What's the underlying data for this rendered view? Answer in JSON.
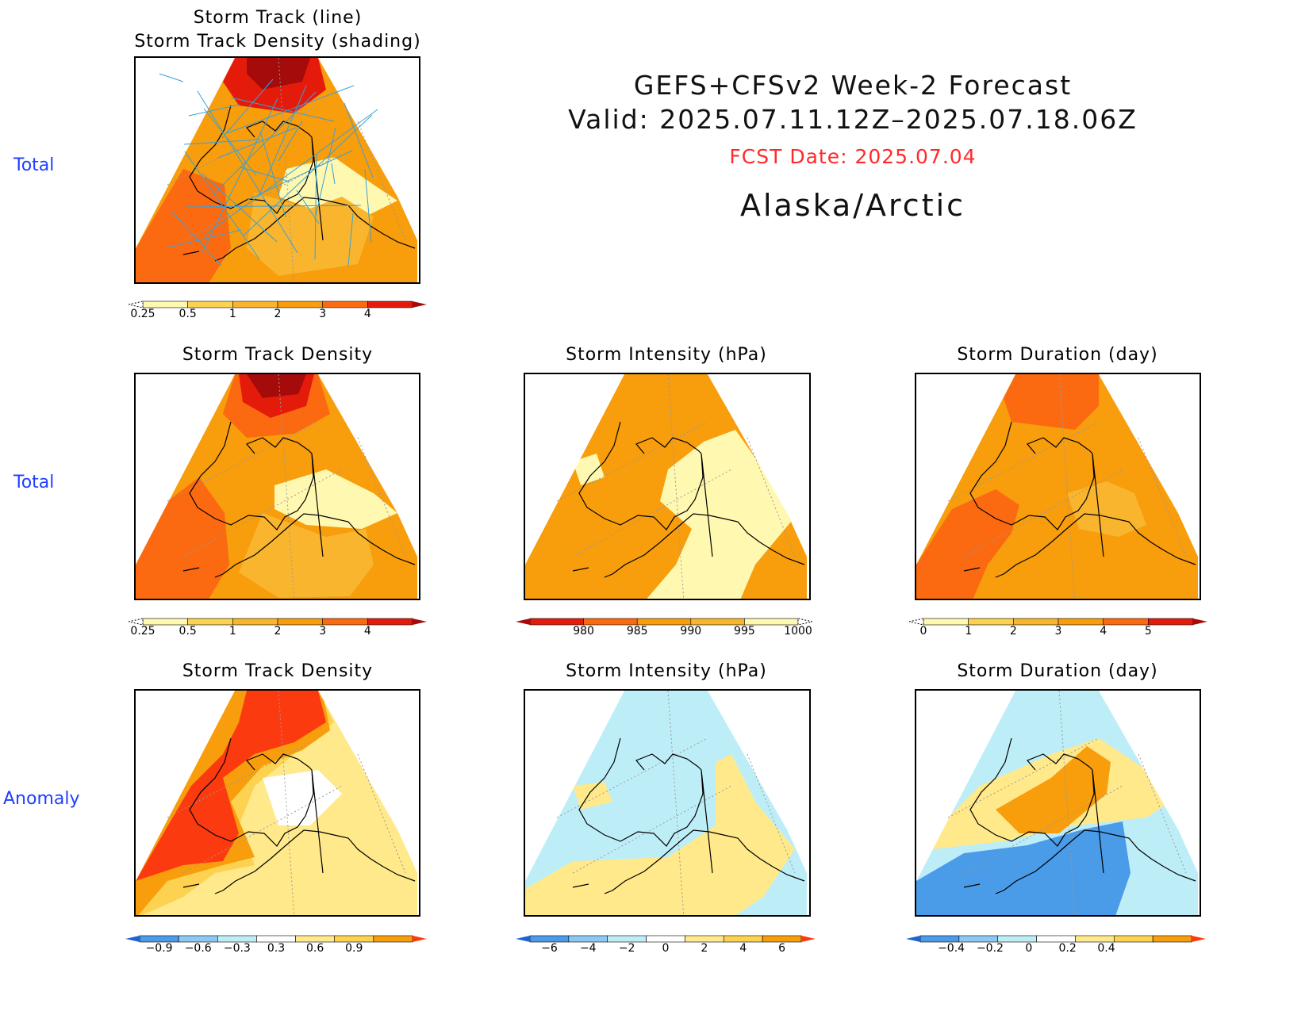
{
  "header": {
    "title_line1": "GEFS+CFSv2 Week-2 Forecast",
    "title_line2": "Valid: 2025.07.11.12Z–2025.07.18.06Z",
    "fcst_date": "FCST Date: 2025.07.04",
    "region": "Alaska/Arctic"
  },
  "rows": {
    "row1": "Total",
    "row2": "Total",
    "row3": "Anomaly"
  },
  "panels": {
    "p1_title_a": "Storm Track (line)",
    "p1_title_b": "Storm Track Density (shading)",
    "p2_title": "Storm Track Density",
    "p3_title": "Storm Intensity (hPa)",
    "p4_title": "Storm Duration (day)",
    "p5_title": "Storm Track Density",
    "p6_title": "Storm Intensity (hPa)",
    "p7_title": "Storm Duration (day)"
  },
  "colors": {
    "dens": [
      "#fff8b0",
      "#fcd250",
      "#f9b52e",
      "#f89d0c",
      "#fb6a10",
      "#e41b0b",
      "#a60b0b"
    ],
    "inten": [
      "#a60b0b",
      "#e41b0b",
      "#fb6a10",
      "#f89d0c",
      "#f9b52e",
      "#fff8b0"
    ],
    "anom": [
      "#1f62d2",
      "#4a9be8",
      "#8cc8f2",
      "#bdeef8",
      "#ffffff",
      "#ffe98a",
      "#fcd250",
      "#f89d0c",
      "#fb3a10"
    ],
    "map_line": "#000000",
    "track_line": "#3aa0d8",
    "row_label": "#1f3fff",
    "fcst_date": "#ff2a2a"
  },
  "chart_data": [
    {
      "type": "heatmap",
      "title": "Storm Track (line) / Storm Track Density (shading)",
      "colorbar_ticks": [
        "0.25",
        "0.5",
        "1",
        "2",
        "3",
        "4"
      ]
    },
    {
      "type": "heatmap",
      "title": "Storm Track Density",
      "colorbar_ticks": [
        "0.25",
        "0.5",
        "1",
        "2",
        "3",
        "4"
      ]
    },
    {
      "type": "heatmap",
      "title": "Storm Intensity (hPa)",
      "colorbar_ticks": [
        "980",
        "985",
        "990",
        "995",
        "1000"
      ]
    },
    {
      "type": "heatmap",
      "title": "Storm Duration (day)",
      "colorbar_ticks": [
        "0",
        "1",
        "2",
        "3",
        "4",
        "5"
      ]
    },
    {
      "type": "heatmap",
      "title": "Storm Track Density",
      "colorbar_ticks": [
        "−0.9",
        "−0.6",
        "−0.3",
        "0.3",
        "0.6",
        "0.9"
      ]
    },
    {
      "type": "heatmap",
      "title": "Storm Intensity (hPa)",
      "colorbar_ticks": [
        "−6",
        "−4",
        "−2",
        "0",
        "2",
        "4",
        "6"
      ]
    },
    {
      "type": "heatmap",
      "title": "Storm Duration (day)",
      "colorbar_ticks": [
        "−0.4",
        "−0.2",
        "0",
        "0.2",
        "0.4"
      ]
    }
  ]
}
